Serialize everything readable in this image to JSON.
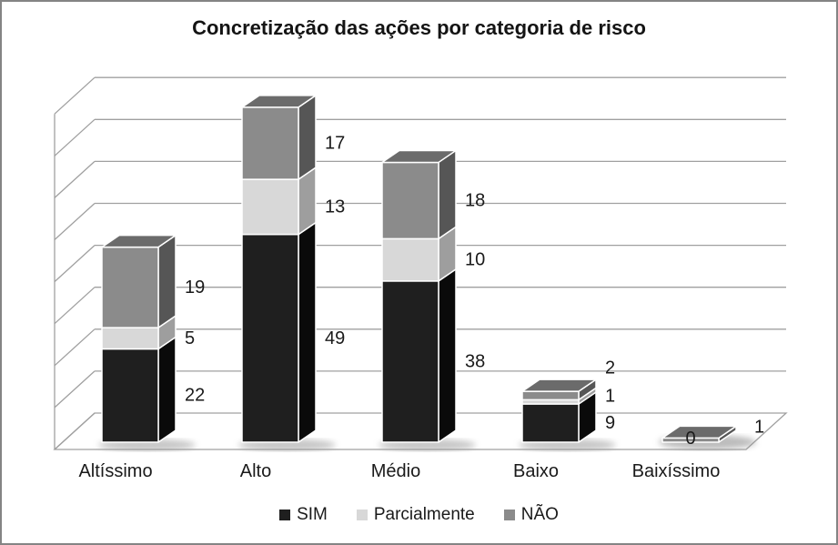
{
  "title": "Concretização das ações por categoria de risco",
  "chart_data": {
    "type": "bar",
    "subtype": "3d-stacked-column",
    "title": "Concretização das ações por categoria de risco",
    "categories": [
      "Altíssimo",
      "Alto",
      "Médio",
      "Baixo",
      "Baixíssimo"
    ],
    "series": [
      {
        "name": "SIM",
        "values": [
          22,
          49,
          38,
          9,
          0
        ],
        "labels": [
          "22",
          "49",
          "38",
          "9",
          "0"
        ],
        "color_front": "#1f1f1f",
        "color_side": "#0a0a0a",
        "color_top": "#3d3d3d"
      },
      {
        "name": "Parcialmente",
        "values": [
          5,
          13,
          10,
          1,
          0
        ],
        "labels": [
          "5",
          "13",
          "10",
          "1",
          ""
        ],
        "color_front": "#d8d8d8",
        "color_side": "#9e9e9e",
        "color_top": "#ececec"
      },
      {
        "name": "NÃO",
        "values": [
          19,
          17,
          18,
          2,
          1
        ],
        "labels": [
          "19",
          "17",
          "18",
          "2",
          "1"
        ],
        "color_front": "#8b8b8b",
        "color_side": "#565656",
        "color_top": "#6b6b6b"
      }
    ],
    "xlabel": "",
    "ylabel": "",
    "ylim": [
      0,
      80
    ],
    "grid_step": 10,
    "grid": "on",
    "y_tick_labels": "none",
    "legend_position": "bottom",
    "data_label_position": "outside-right"
  },
  "colors": {
    "background": "#ffffff",
    "border": "#848484",
    "gridline": "#a0a0a0",
    "axis": "#a0a0a0",
    "text": "#1a1a1a",
    "shadow": "#8f8f8f"
  }
}
